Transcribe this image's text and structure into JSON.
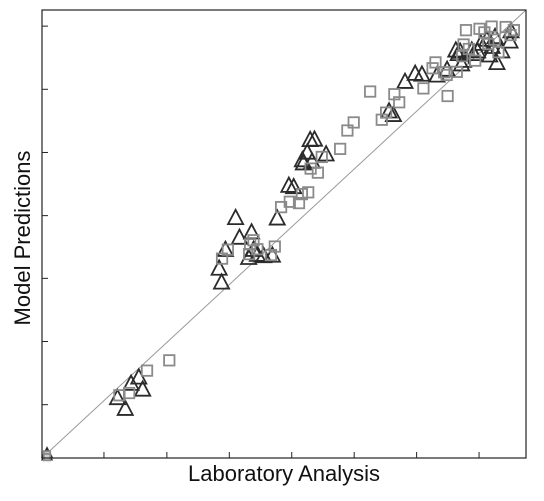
{
  "chart_data": {
    "type": "scatter",
    "title": "",
    "xlabel": "Laboratory Analysis",
    "ylabel": "Model Predictions",
    "xlim": [
      0,
      10
    ],
    "ylim": [
      0,
      10
    ],
    "grid": false,
    "legend": "none",
    "tick_labels": false,
    "x_ticks": [
      1.28,
      2.58,
      3.87,
      5.16,
      6.45,
      7.74,
      9.03
    ],
    "y_ticks": [
      1.19,
      2.6,
      4.01,
      5.41,
      6.82,
      8.23,
      9.64
    ],
    "reference_line": {
      "from": [
        0,
        0
      ],
      "to": [
        10,
        10
      ],
      "color": "#9a9a9a"
    },
    "colors": {
      "triangle": "#2b2b2b",
      "square": "#8a8a8a",
      "axis": "#222222"
    },
    "series": [
      {
        "marker": "triangle",
        "points": [
          [
            1.56,
            1.34
          ],
          [
            1.72,
            1.1
          ],
          [
            1.84,
            1.66
          ],
          [
            2.0,
            1.8
          ],
          [
            2.08,
            1.53
          ],
          [
            3.66,
            4.23
          ],
          [
            3.71,
            3.92
          ],
          [
            3.79,
            4.65
          ],
          [
            4.0,
            5.36
          ],
          [
            4.08,
            4.92
          ],
          [
            4.27,
            4.47
          ],
          [
            4.33,
            5.04
          ],
          [
            4.37,
            4.65
          ],
          [
            4.45,
            4.54
          ],
          [
            4.58,
            4.51
          ],
          [
            4.76,
            4.52
          ],
          [
            4.86,
            5.35
          ],
          [
            5.1,
            6.08
          ],
          [
            5.2,
            6.05
          ],
          [
            5.4,
            6.58
          ],
          [
            5.38,
            6.65
          ],
          [
            5.48,
            6.82
          ],
          [
            5.58,
            6.62
          ],
          [
            5.54,
            7.1
          ],
          [
            5.63,
            7.11
          ],
          [
            5.87,
            6.78
          ],
          [
            7.17,
            7.74
          ],
          [
            7.26,
            7.66
          ],
          [
            7.5,
            8.4
          ],
          [
            7.71,
            8.58
          ],
          [
            7.85,
            8.56
          ],
          [
            8.16,
            8.54
          ],
          [
            8.37,
            8.67
          ],
          [
            8.55,
            9.1
          ],
          [
            8.6,
            9.02
          ],
          [
            8.64,
            9.07
          ],
          [
            8.67,
            8.79
          ],
          [
            8.71,
            8.87
          ],
          [
            8.88,
            9.1
          ],
          [
            8.92,
            9.02
          ],
          [
            9.0,
            9.08
          ],
          [
            9.07,
            9.25
          ],
          [
            9.19,
            9.34
          ],
          [
            9.36,
            9.4
          ],
          [
            9.3,
            9.18
          ],
          [
            9.25,
            8.99
          ],
          [
            9.4,
            8.82
          ],
          [
            9.5,
            9.08
          ],
          [
            9.67,
            9.3
          ],
          [
            9.69,
            9.53
          ]
        ]
      },
      {
        "marker": "square",
        "points": [
          [
            1.6,
            1.4
          ],
          [
            1.8,
            1.45
          ],
          [
            2.17,
            1.95
          ],
          [
            2.63,
            2.18
          ],
          [
            3.72,
            4.45
          ],
          [
            3.84,
            4.65
          ],
          [
            4.28,
            4.55
          ],
          [
            4.3,
            4.77
          ],
          [
            4.37,
            4.86
          ],
          [
            4.45,
            4.66
          ],
          [
            4.73,
            4.53
          ],
          [
            4.81,
            4.72
          ],
          [
            4.94,
            5.6
          ],
          [
            5.12,
            5.72
          ],
          [
            5.31,
            5.69
          ],
          [
            5.37,
            5.89
          ],
          [
            5.5,
            5.93
          ],
          [
            5.55,
            6.46
          ],
          [
            5.7,
            6.37
          ],
          [
            5.78,
            6.72
          ],
          [
            6.16,
            6.9
          ],
          [
            6.31,
            7.31
          ],
          [
            6.44,
            7.49
          ],
          [
            6.78,
            8.18
          ],
          [
            7.02,
            7.55
          ],
          [
            7.11,
            7.71
          ],
          [
            7.28,
            8.12
          ],
          [
            7.38,
            7.94
          ],
          [
            7.88,
            8.25
          ],
          [
            8.07,
            8.7
          ],
          [
            8.13,
            8.83
          ],
          [
            8.31,
            8.61
          ],
          [
            8.36,
            8.55
          ],
          [
            8.38,
            8.08
          ],
          [
            8.57,
            8.62
          ],
          [
            8.68,
            8.97
          ],
          [
            8.71,
            9.23
          ],
          [
            8.76,
            9.55
          ],
          [
            8.82,
            9.13
          ],
          [
            8.95,
            8.87
          ],
          [
            9.04,
            9.58
          ],
          [
            9.14,
            9.5
          ],
          [
            9.22,
            9.24
          ],
          [
            9.29,
            9.63
          ],
          [
            9.35,
            9.34
          ],
          [
            9.43,
            9.06
          ],
          [
            9.58,
            9.62
          ],
          [
            9.68,
            9.44
          ],
          [
            9.75,
            9.55
          ]
        ]
      }
    ],
    "origin_markers": [
      {
        "marker": "triangle",
        "points": [
          [
            0.0,
            0.11
          ],
          [
            0.0,
            0.05
          ]
        ]
      },
      {
        "marker": "square",
        "points": [
          [
            0.0,
            0.08
          ],
          [
            0.0,
            0.02
          ]
        ]
      }
    ]
  }
}
